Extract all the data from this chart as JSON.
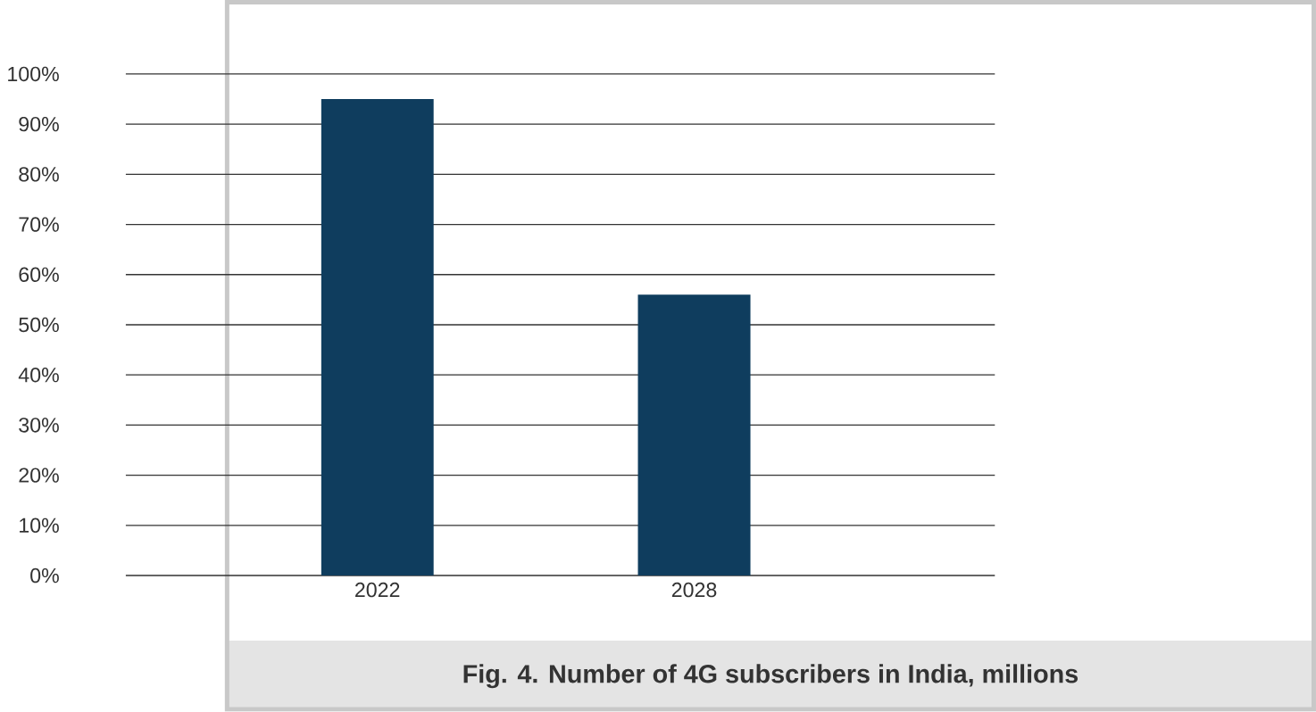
{
  "chart_data": {
    "type": "bar",
    "title": "Fig. 4. Number of 4G subscribers in India, millions",
    "categories": [
      "2022",
      "2028"
    ],
    "values": [
      95,
      56
    ],
    "color": "#0f3d5e",
    "ylim": [
      0,
      100
    ],
    "yticks": [
      {
        "value": 0,
        "label": "0%"
      },
      {
        "value": 10,
        "label": "10%"
      },
      {
        "value": 20,
        "label": "20%"
      },
      {
        "value": 30,
        "label": "30%"
      },
      {
        "value": 40,
        "label": "40%"
      },
      {
        "value": 50,
        "label": "50%"
      },
      {
        "value": 60,
        "label": "60%"
      },
      {
        "value": 70,
        "label": "70%"
      },
      {
        "value": 80,
        "label": "80%"
      },
      {
        "value": 90,
        "label": "90%"
      },
      {
        "value": 100,
        "label": "100%"
      }
    ],
    "grid": "y"
  }
}
